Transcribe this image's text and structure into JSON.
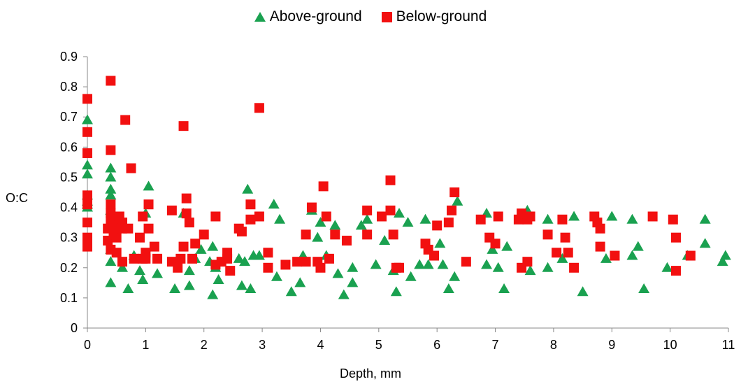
{
  "chart_data": {
    "type": "scatter",
    "xlabel": "Depth, mm",
    "ylabel": "O:C",
    "xlim": [
      0,
      11
    ],
    "ylim": [
      0,
      0.9
    ],
    "xticks": [
      "0",
      "1",
      "2",
      "3",
      "4",
      "5",
      "6",
      "7",
      "8",
      "9",
      "10",
      "11"
    ],
    "yticks": [
      "0",
      "0.1",
      "0.2",
      "0.3",
      "0.4",
      "0.5",
      "0.6",
      "0.7",
      "0.8",
      "0.9"
    ],
    "grid": false,
    "legend_position": "top-center",
    "series": [
      {
        "name": "Above-ground",
        "marker": "triangle",
        "color": "#1aa150",
        "points": [
          [
            0.0,
            0.69
          ],
          [
            0.0,
            0.54
          ],
          [
            0.0,
            0.51
          ],
          [
            0.0,
            0.44
          ],
          [
            0.0,
            0.42
          ],
          [
            0.0,
            0.41
          ],
          [
            0.0,
            0.4
          ],
          [
            0.4,
            0.53
          ],
          [
            0.4,
            0.5
          ],
          [
            0.4,
            0.46
          ],
          [
            0.4,
            0.44
          ],
          [
            0.4,
            0.39
          ],
          [
            0.4,
            0.34
          ],
          [
            0.4,
            0.26
          ],
          [
            0.4,
            0.22
          ],
          [
            0.4,
            0.15
          ],
          [
            0.5,
            0.34
          ],
          [
            0.6,
            0.2
          ],
          [
            0.7,
            0.13
          ],
          [
            0.8,
            0.24
          ],
          [
            0.9,
            0.19
          ],
          [
            0.95,
            0.16
          ],
          [
            1.0,
            0.38
          ],
          [
            1.05,
            0.47
          ],
          [
            1.2,
            0.18
          ],
          [
            1.5,
            0.13
          ],
          [
            1.65,
            0.38
          ],
          [
            1.75,
            0.14
          ],
          [
            1.75,
            0.19
          ],
          [
            1.85,
            0.23
          ],
          [
            1.95,
            0.26
          ],
          [
            2.1,
            0.22
          ],
          [
            2.15,
            0.11
          ],
          [
            2.15,
            0.27
          ],
          [
            2.2,
            0.2
          ],
          [
            2.25,
            0.16
          ],
          [
            2.6,
            0.23
          ],
          [
            2.65,
            0.14
          ],
          [
            2.7,
            0.22
          ],
          [
            2.75,
            0.46
          ],
          [
            2.8,
            0.13
          ],
          [
            2.85,
            0.24
          ],
          [
            2.95,
            0.24
          ],
          [
            3.2,
            0.41
          ],
          [
            3.25,
            0.17
          ],
          [
            3.3,
            0.36
          ],
          [
            3.5,
            0.12
          ],
          [
            3.65,
            0.15
          ],
          [
            3.7,
            0.24
          ],
          [
            3.85,
            0.39
          ],
          [
            3.95,
            0.3
          ],
          [
            4.0,
            0.35
          ],
          [
            4.1,
            0.24
          ],
          [
            4.25,
            0.34
          ],
          [
            4.3,
            0.18
          ],
          [
            4.4,
            0.11
          ],
          [
            4.55,
            0.2
          ],
          [
            4.55,
            0.15
          ],
          [
            4.7,
            0.34
          ],
          [
            4.8,
            0.36
          ],
          [
            4.95,
            0.21
          ],
          [
            5.1,
            0.29
          ],
          [
            5.25,
            0.19
          ],
          [
            5.3,
            0.12
          ],
          [
            5.35,
            0.38
          ],
          [
            5.5,
            0.35
          ],
          [
            5.55,
            0.17
          ],
          [
            5.7,
            0.21
          ],
          [
            5.8,
            0.36
          ],
          [
            5.85,
            0.21
          ],
          [
            6.05,
            0.28
          ],
          [
            6.1,
            0.21
          ],
          [
            6.2,
            0.13
          ],
          [
            6.3,
            0.17
          ],
          [
            6.35,
            0.42
          ],
          [
            6.85,
            0.21
          ],
          [
            6.85,
            0.38
          ],
          [
            6.95,
            0.26
          ],
          [
            7.05,
            0.2
          ],
          [
            7.15,
            0.13
          ],
          [
            7.2,
            0.27
          ],
          [
            7.55,
            0.39
          ],
          [
            7.6,
            0.19
          ],
          [
            7.9,
            0.2
          ],
          [
            7.9,
            0.36
          ],
          [
            8.15,
            0.23
          ],
          [
            8.35,
            0.37
          ],
          [
            8.5,
            0.12
          ],
          [
            8.9,
            0.23
          ],
          [
            9.0,
            0.37
          ],
          [
            9.35,
            0.24
          ],
          [
            9.35,
            0.36
          ],
          [
            9.45,
            0.27
          ],
          [
            9.55,
            0.13
          ],
          [
            9.95,
            0.2
          ],
          [
            10.3,
            0.24
          ],
          [
            10.6,
            0.36
          ],
          [
            10.6,
            0.28
          ],
          [
            10.9,
            0.22
          ],
          [
            10.95,
            0.24
          ]
        ]
      },
      {
        "name": "Below-ground",
        "marker": "square",
        "color": "#f21010",
        "points": [
          [
            0.0,
            0.76
          ],
          [
            0.0,
            0.65
          ],
          [
            0.0,
            0.58
          ],
          [
            0.0,
            0.44
          ],
          [
            0.0,
            0.42
          ],
          [
            0.0,
            0.41
          ],
          [
            0.0,
            0.35
          ],
          [
            0.0,
            0.3
          ],
          [
            0.0,
            0.29
          ],
          [
            0.0,
            0.27
          ],
          [
            0.4,
            0.82
          ],
          [
            0.4,
            0.59
          ],
          [
            0.4,
            0.41
          ],
          [
            0.4,
            0.38
          ],
          [
            0.4,
            0.36
          ],
          [
            0.35,
            0.33
          ],
          [
            0.35,
            0.29
          ],
          [
            0.4,
            0.26
          ],
          [
            0.45,
            0.34
          ],
          [
            0.45,
            0.31
          ],
          [
            0.5,
            0.3
          ],
          [
            0.5,
            0.25
          ],
          [
            0.55,
            0.37
          ],
          [
            0.6,
            0.35
          ],
          [
            0.6,
            0.33
          ],
          [
            0.6,
            0.22
          ],
          [
            0.65,
            0.69
          ],
          [
            0.7,
            0.33
          ],
          [
            0.75,
            0.53
          ],
          [
            0.8,
            0.23
          ],
          [
            0.9,
            0.3
          ],
          [
            0.95,
            0.23
          ],
          [
            0.95,
            0.37
          ],
          [
            1.0,
            0.25
          ],
          [
            1.0,
            0.23
          ],
          [
            1.05,
            0.33
          ],
          [
            1.05,
            0.41
          ],
          [
            1.15,
            0.27
          ],
          [
            1.2,
            0.23
          ],
          [
            1.45,
            0.39
          ],
          [
            1.45,
            0.22
          ],
          [
            1.55,
            0.2
          ],
          [
            1.6,
            0.23
          ],
          [
            1.65,
            0.67
          ],
          [
            1.65,
            0.27
          ],
          [
            1.7,
            0.43
          ],
          [
            1.7,
            0.38
          ],
          [
            1.75,
            0.35
          ],
          [
            1.8,
            0.23
          ],
          [
            1.85,
            0.28
          ],
          [
            2.0,
            0.31
          ],
          [
            2.2,
            0.37
          ],
          [
            2.2,
            0.21
          ],
          [
            2.3,
            0.22
          ],
          [
            2.4,
            0.25
          ],
          [
            2.4,
            0.23
          ],
          [
            2.45,
            0.19
          ],
          [
            2.6,
            0.33
          ],
          [
            2.65,
            0.32
          ],
          [
            2.8,
            0.41
          ],
          [
            2.8,
            0.36
          ],
          [
            2.95,
            0.73
          ],
          [
            2.95,
            0.37
          ],
          [
            3.1,
            0.25
          ],
          [
            3.1,
            0.2
          ],
          [
            3.4,
            0.21
          ],
          [
            3.6,
            0.22
          ],
          [
            3.75,
            0.31
          ],
          [
            3.75,
            0.22
          ],
          [
            3.85,
            0.4
          ],
          [
            3.95,
            0.22
          ],
          [
            4.0,
            0.2
          ],
          [
            4.05,
            0.47
          ],
          [
            4.1,
            0.37
          ],
          [
            4.15,
            0.23
          ],
          [
            4.25,
            0.31
          ],
          [
            4.45,
            0.29
          ],
          [
            4.8,
            0.39
          ],
          [
            4.8,
            0.31
          ],
          [
            5.05,
            0.37
          ],
          [
            5.2,
            0.49
          ],
          [
            5.2,
            0.39
          ],
          [
            5.25,
            0.31
          ],
          [
            5.3,
            0.2
          ],
          [
            5.35,
            0.2
          ],
          [
            5.8,
            0.28
          ],
          [
            5.85,
            0.26
          ],
          [
            5.95,
            0.24
          ],
          [
            6.0,
            0.34
          ],
          [
            6.2,
            0.35
          ],
          [
            6.25,
            0.39
          ],
          [
            6.3,
            0.45
          ],
          [
            6.5,
            0.22
          ],
          [
            6.75,
            0.36
          ],
          [
            6.9,
            0.3
          ],
          [
            7.0,
            0.28
          ],
          [
            7.05,
            0.37
          ],
          [
            7.4,
            0.36
          ],
          [
            7.45,
            0.38
          ],
          [
            7.45,
            0.2
          ],
          [
            7.55,
            0.36
          ],
          [
            7.55,
            0.22
          ],
          [
            7.6,
            0.37
          ],
          [
            7.9,
            0.31
          ],
          [
            8.05,
            0.25
          ],
          [
            8.15,
            0.36
          ],
          [
            8.2,
            0.3
          ],
          [
            8.25,
            0.25
          ],
          [
            8.35,
            0.2
          ],
          [
            8.7,
            0.37
          ],
          [
            8.75,
            0.35
          ],
          [
            8.8,
            0.33
          ],
          [
            8.8,
            0.27
          ],
          [
            9.05,
            0.24
          ],
          [
            9.7,
            0.37
          ],
          [
            10.05,
            0.36
          ],
          [
            10.1,
            0.3
          ],
          [
            10.1,
            0.19
          ],
          [
            10.35,
            0.24
          ]
        ]
      }
    ]
  }
}
